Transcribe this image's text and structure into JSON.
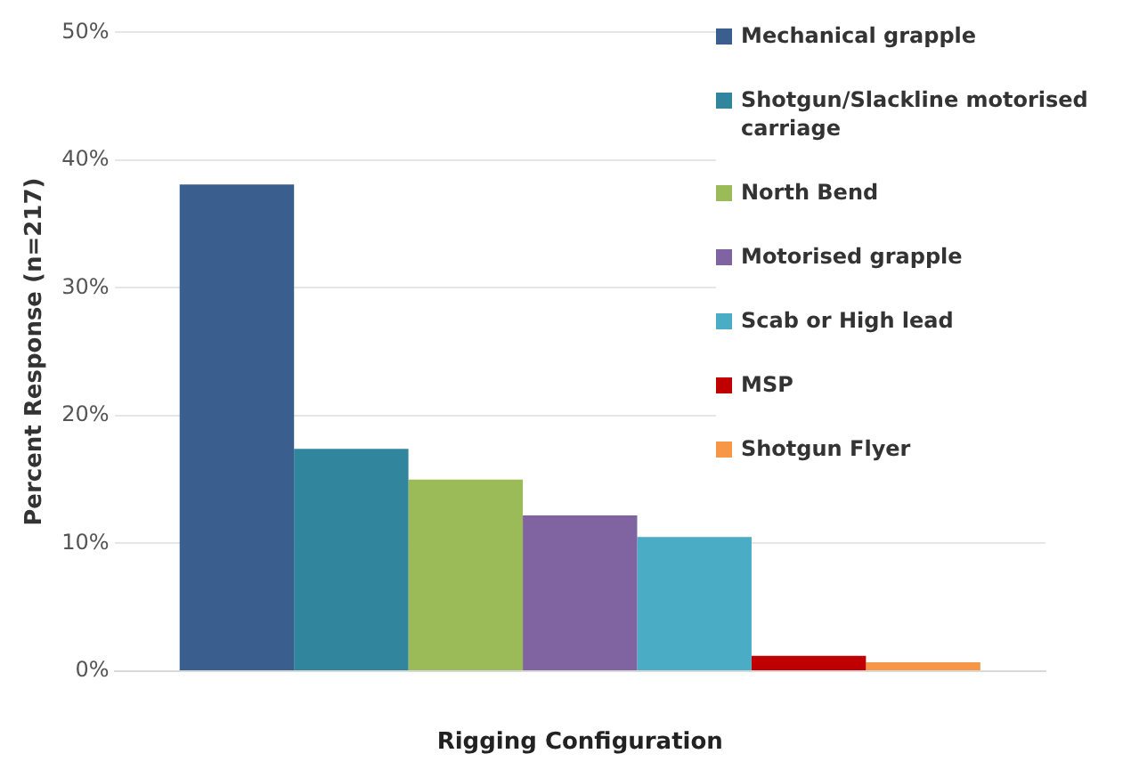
{
  "chart_data": {
    "type": "bar",
    "xlabel": "Rigging Configuration",
    "ylabel": "Percent Response (n=217)",
    "categories": [
      null
    ],
    "series": [
      {
        "name": "Mechanical grapple",
        "color": "#3a5f8f",
        "values": [
          38.1
        ]
      },
      {
        "name": "Shotgun/Slackline motorised carriage",
        "color": "#31859c",
        "values": [
          17.4
        ]
      },
      {
        "name": "North Bend",
        "color": "#9bbb59",
        "values": [
          15.0
        ]
      },
      {
        "name": "Motorised grapple",
        "color": "#8064a2",
        "values": [
          12.2
        ]
      },
      {
        "name": "Scab or High lead",
        "color": "#4bacc6",
        "values": [
          10.5
        ]
      },
      {
        "name": "MSP",
        "color": "#c00000",
        "values": [
          1.2
        ]
      },
      {
        "name": "Shotgun Flyer",
        "color": "#f79646",
        "values": [
          0.7
        ]
      }
    ],
    "ylim": [
      0,
      50
    ],
    "yticks": [
      {
        "value": 0,
        "label": "0%"
      },
      {
        "value": 10,
        "label": "10%"
      },
      {
        "value": 20,
        "label": "20%"
      },
      {
        "value": 30,
        "label": "30%"
      },
      {
        "value": 40,
        "label": "40%"
      },
      {
        "value": 50,
        "label": "50%"
      }
    ],
    "grid": "y",
    "legend": "top right"
  }
}
